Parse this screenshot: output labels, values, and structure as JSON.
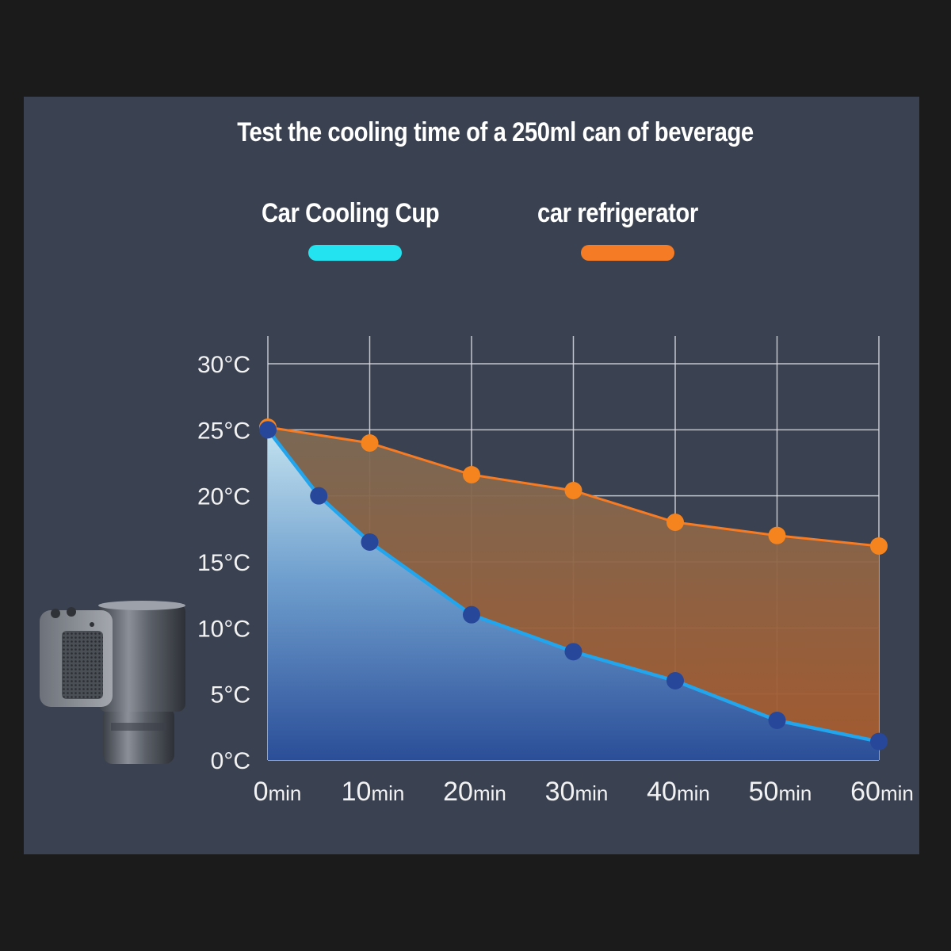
{
  "title": "Test the cooling time of a 250ml can of beverage",
  "legend": [
    {
      "label": "Car Cooling Cup",
      "color": "#22e3ef"
    },
    {
      "label": "car refrigerator",
      "color": "#f57b25"
    }
  ],
  "colors": {
    "background": "#1b1b1b",
    "panel": "#3a4150",
    "cup_line": "#22a5ec",
    "cup_marker": "#27479a",
    "fridge_line": "#f57b25",
    "fridge_marker": "#f5841f"
  },
  "chart_data": {
    "type": "area",
    "title": "Test the cooling time of a 250ml can of beverage",
    "xlabel": "",
    "ylabel": "",
    "x_unit": "min",
    "y_unit": "°C",
    "xlim": [
      0,
      60
    ],
    "ylim": [
      0,
      30
    ],
    "x_ticks": [
      0,
      10,
      20,
      30,
      40,
      50,
      60
    ],
    "x_tick_labels": [
      "0",
      "10",
      "20",
      "30",
      "40",
      "50",
      "60"
    ],
    "y_ticks": [
      0,
      5,
      10,
      15,
      20,
      25,
      30
    ],
    "y_tick_labels": [
      "0°C",
      "5°C",
      "10°C",
      "15°C",
      "20°C",
      "25°C",
      "30°C"
    ],
    "grid": true,
    "legend_position": "top",
    "series": [
      {
        "name": "Car Cooling Cup",
        "points": [
          {
            "x": 0,
            "y": 25
          },
          {
            "x": 5,
            "y": 20
          },
          {
            "x": 10,
            "y": 16.5
          },
          {
            "x": 20,
            "y": 11
          },
          {
            "x": 30,
            "y": 8.2
          },
          {
            "x": 40,
            "y": 6
          },
          {
            "x": 50,
            "y": 3
          },
          {
            "x": 60,
            "y": 1.4
          }
        ]
      },
      {
        "name": "car refrigerator",
        "points": [
          {
            "x": 0,
            "y": 25.2
          },
          {
            "x": 10,
            "y": 24
          },
          {
            "x": 20,
            "y": 21.6
          },
          {
            "x": 30,
            "y": 20.4
          },
          {
            "x": 40,
            "y": 18
          },
          {
            "x": 50,
            "y": 17
          },
          {
            "x": 60,
            "y": 16.2
          }
        ]
      }
    ]
  }
}
